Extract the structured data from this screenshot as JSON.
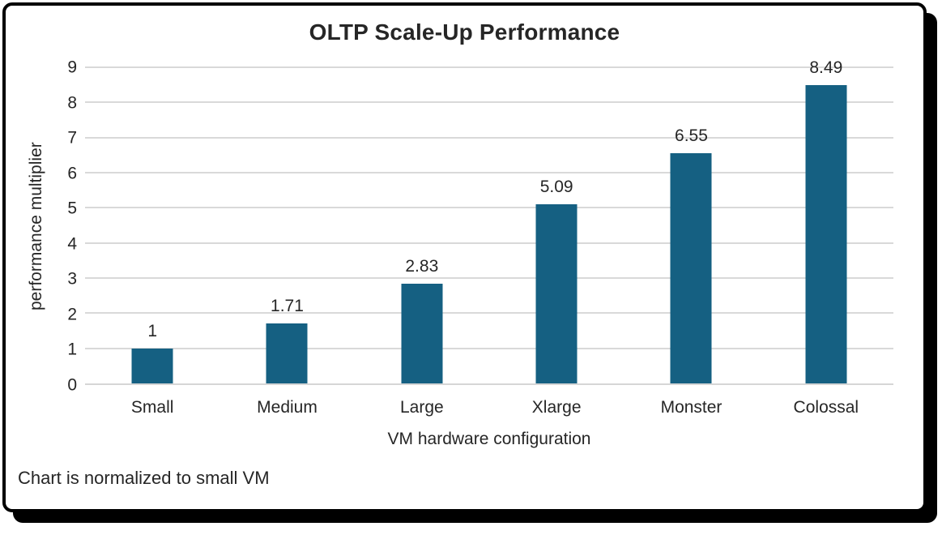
{
  "chart_data": {
    "type": "bar",
    "title": "OLTP Scale-Up Performance",
    "categories": [
      "Small",
      "Medium",
      "Large",
      "Xlarge",
      "Monster",
      "Colossal"
    ],
    "values": [
      1,
      1.71,
      2.83,
      5.09,
      6.55,
      8.49
    ],
    "value_labels": [
      "1",
      "1.71",
      "2.83",
      "5.09",
      "6.55",
      "8.49"
    ],
    "xlabel": "VM hardware configuration",
    "ylabel": "performance multiplier",
    "ylim": [
      0,
      9
    ],
    "yticks": [
      0,
      1,
      2,
      3,
      4,
      5,
      6,
      7,
      8,
      9
    ],
    "grid": true,
    "legend": "none",
    "bar_color": "#156082",
    "gridline_color": "#d9d9d9",
    "footnote": "Chart is normalized to small VM"
  }
}
